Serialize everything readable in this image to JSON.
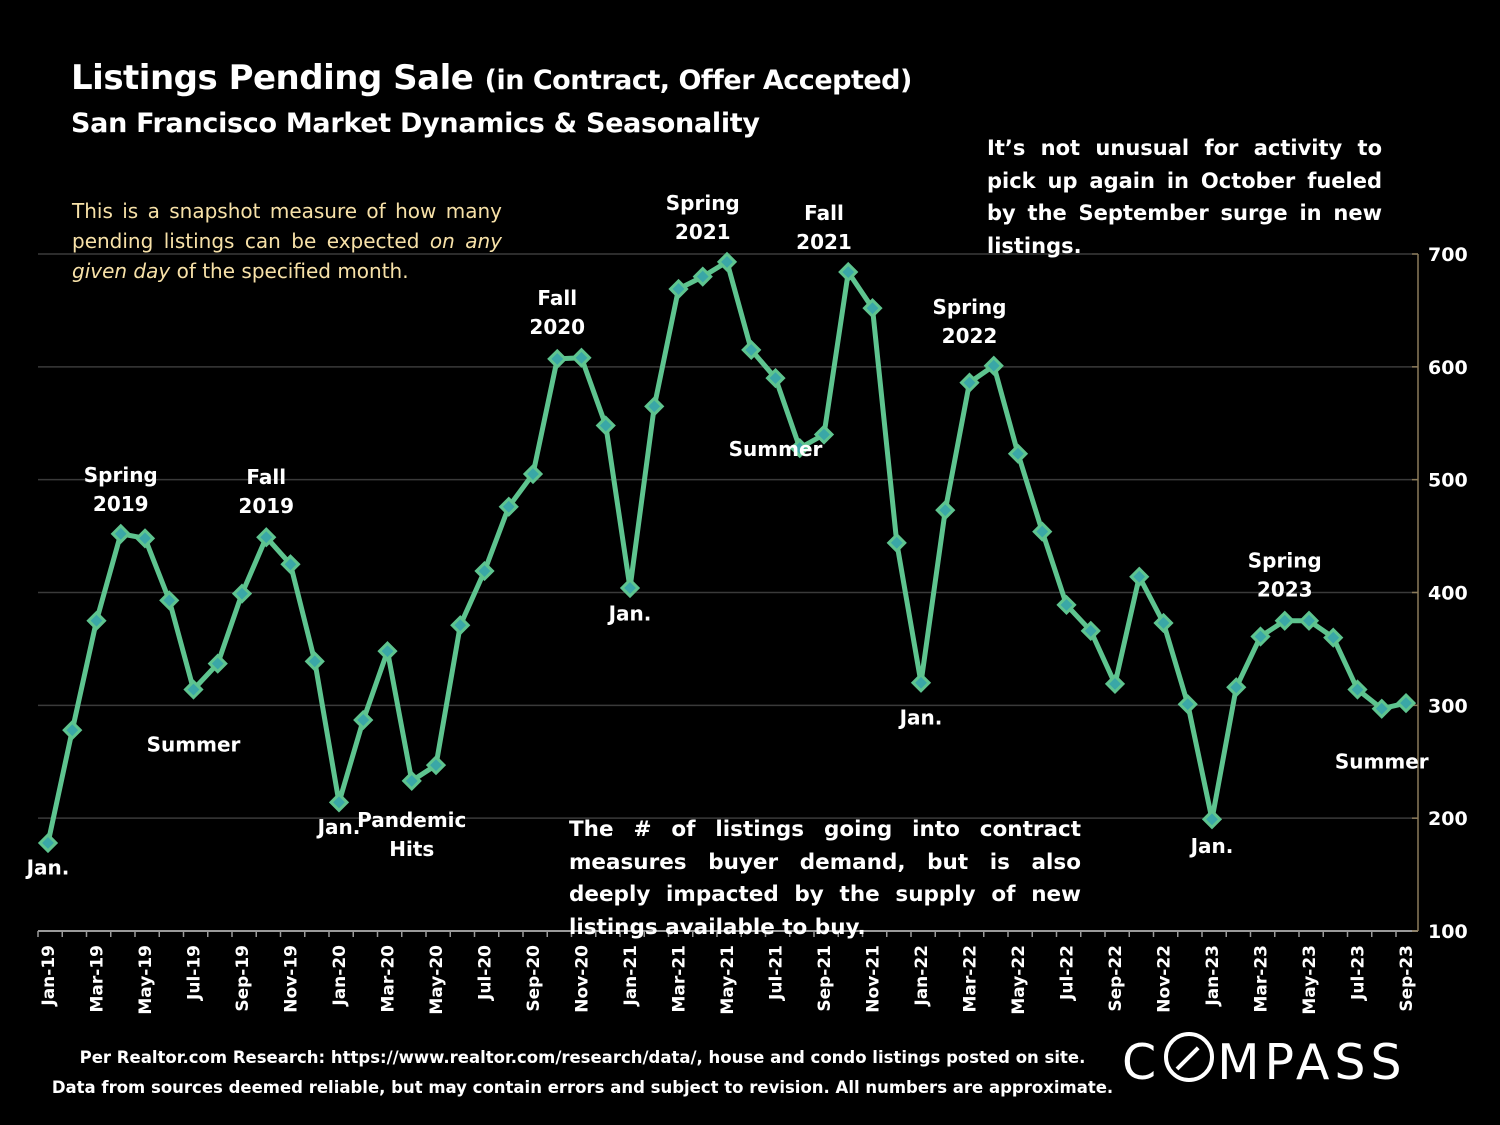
{
  "header": {
    "title_main": "Listings Pending Sale",
    "title_paren": "(in Contract, Offer Accepted)",
    "subtitle": "San Francisco Market Dynamics & Seasonality"
  },
  "notes": {
    "left_1": "This is a snapshot measure of how many pending listings can be expected",
    "left_em": "on any given day",
    "left_2": "of the specified month.",
    "right": "It’s not unusual for activity to pick up again in October fueled by the September surge in new listings.",
    "bottom": "The # of listings going into contract measures buyer demand, but is also deeply impacted by the supply of new listings available to buy."
  },
  "footer": {
    "line1": "Per Realtor.com Research:  https://www.realtor.com/research/data/, house and condo listings posted on site.",
    "line2": "Data from sources deemed reliable, but may contain errors and subject to revision. All numbers are approximate."
  },
  "logo": {
    "pre": "C",
    "post": "MPASS"
  },
  "colors": {
    "line": "#5ec48f",
    "marker": "#3aa7a7",
    "background": "#000000",
    "grid": "#3a3a3a",
    "note_left": "#f7e1a8"
  },
  "chart_data": {
    "type": "line",
    "ylim": [
      100,
      700
    ],
    "yticks": [
      100,
      200,
      300,
      400,
      500,
      600,
      700
    ],
    "y_axis_side": "right",
    "grid": true,
    "x": [
      "Jan-19",
      "Feb-19",
      "Mar-19",
      "Apr-19",
      "May-19",
      "Jun-19",
      "Jul-19",
      "Aug-19",
      "Sep-19",
      "Oct-19",
      "Nov-19",
      "Dec-19",
      "Jan-20",
      "Feb-20",
      "Mar-20",
      "Apr-20",
      "May-20",
      "Jun-20",
      "Jul-20",
      "Aug-20",
      "Sep-20",
      "Oct-20",
      "Nov-20",
      "Dec-20",
      "Jan-21",
      "Feb-21",
      "Mar-21",
      "Apr-21",
      "May-21",
      "Jun-21",
      "Jul-21",
      "Aug-21",
      "Sep-21",
      "Oct-21",
      "Nov-21",
      "Dec-21",
      "Jan-22",
      "Feb-22",
      "Mar-22",
      "Apr-22",
      "May-22",
      "Jun-22",
      "Jul-22",
      "Aug-22",
      "Sep-22",
      "Oct-22",
      "Nov-22",
      "Dec-22",
      "Jan-23",
      "Feb-23",
      "Mar-23",
      "Apr-23",
      "May-23",
      "Jun-23",
      "Jul-23",
      "Aug-23",
      "Sep-23"
    ],
    "xtick_labels": [
      "Jan-19",
      "Mar-19",
      "May-19",
      "Jul-19",
      "Sep-19",
      "Nov-19",
      "Jan-20",
      "Mar-20",
      "May-20",
      "Jul-20",
      "Sep-20",
      "Nov-20",
      "Jan-21",
      "Mar-21",
      "May-21",
      "Jul-21",
      "Sep-21",
      "Nov-21",
      "Jan-22",
      "Mar-22",
      "May-22",
      "Jul-22",
      "Sep-22",
      "Nov-22",
      "Jan-23",
      "Mar-23",
      "May-23",
      "Jul-23",
      "Sep-23"
    ],
    "series": [
      {
        "values": [
          178,
          278,
          375,
          452,
          448,
          393,
          314,
          337,
          399,
          449,
          425,
          339,
          214,
          287,
          348,
          233,
          247,
          371,
          419,
          476,
          505,
          607,
          608,
          548,
          404,
          565,
          669,
          680,
          693,
          615,
          590,
          528,
          540,
          684,
          652,
          444,
          320,
          473,
          586,
          601,
          523,
          454,
          389,
          366,
          319,
          414,
          373,
          301,
          199,
          316,
          361,
          375,
          375,
          360,
          314,
          297,
          302
        ]
      }
    ],
    "annotations": [
      {
        "lines": [
          "Jan."
        ],
        "at": "Jan-19",
        "value": 150
      },
      {
        "lines": [
          "Spring",
          "2019"
        ],
        "at": "Apr-19",
        "value": 498
      },
      {
        "lines": [
          "Summer"
        ],
        "at": "Jul-19",
        "value": 259
      },
      {
        "lines": [
          "Fall",
          "2019"
        ],
        "at": "Oct-19",
        "value": 496
      },
      {
        "lines": [
          "Jan."
        ],
        "at": "Jan-20",
        "value": 186
      },
      {
        "lines": [
          "Pandemic",
          "Hits"
        ],
        "at": "Apr-20",
        "value": 192
      },
      {
        "lines": [
          "Fall",
          "2020"
        ],
        "at": "Oct-20",
        "value": 655
      },
      {
        "lines": [
          "Jan."
        ],
        "at": "Jan-21",
        "value": 375
      },
      {
        "lines": [
          "Spring",
          "2021"
        ],
        "at": "Apr-21",
        "value": 739
      },
      {
        "lines": [
          "Summer"
        ],
        "at": "Jul-21",
        "value": 521
      },
      {
        "lines": [
          "Fall",
          "2021"
        ],
        "at": "Sep-21",
        "value": 730
      },
      {
        "lines": [
          "Jan."
        ],
        "at": "Jan-22",
        "value": 283
      },
      {
        "lines": [
          "Spring",
          "2022"
        ],
        "at": "Mar-22",
        "value": 647
      },
      {
        "lines": [
          "Spring",
          "2023"
        ],
        "at": "Apr-23",
        "value": 422
      },
      {
        "lines": [
          "Jan."
        ],
        "at": "Jan-23",
        "value": 169
      },
      {
        "lines": [
          "Summer"
        ],
        "at": "Aug-23",
        "value": 244
      }
    ]
  }
}
